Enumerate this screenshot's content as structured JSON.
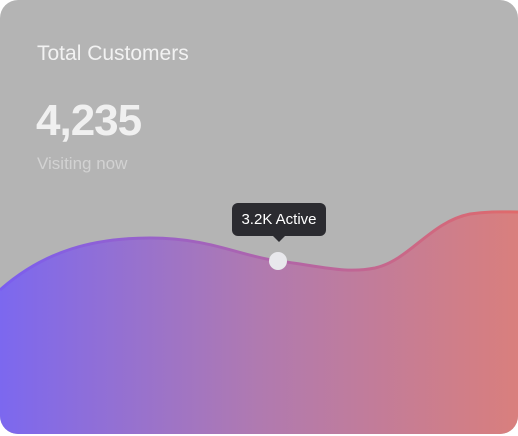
{
  "card": {
    "title": "Total Customers",
    "value": "4,235",
    "subtitle": "Visiting now",
    "tooltip": "3.2K Active"
  }
}
